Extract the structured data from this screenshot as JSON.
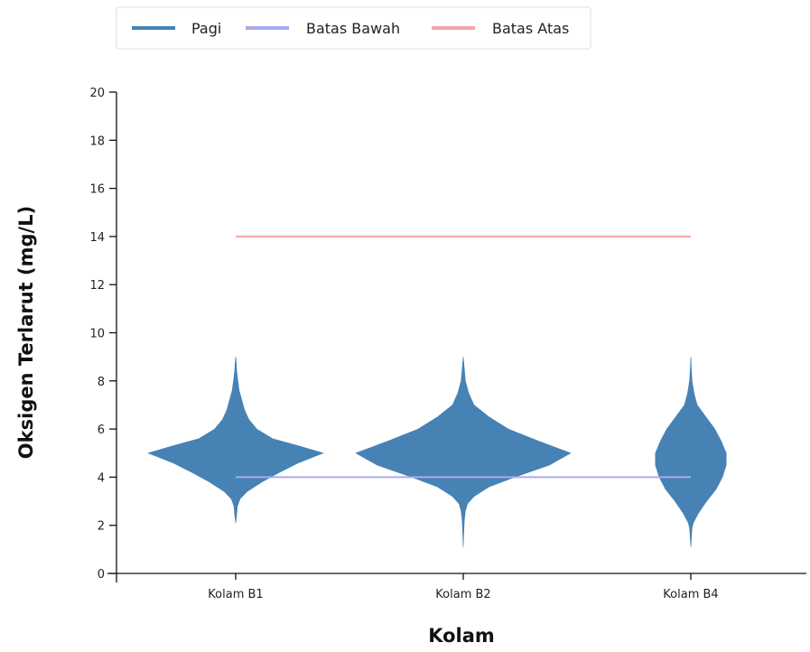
{
  "chart_data": {
    "type": "violin",
    "title": "",
    "xlabel": "Kolam",
    "ylabel": "Oksigen Terlarut (mg/L)",
    "categories": [
      "Kolam B1",
      "Kolam B2",
      "Kolam B4"
    ],
    "ylim": [
      0,
      20
    ],
    "yticks": [
      0,
      2,
      4,
      6,
      8,
      10,
      12,
      14,
      16,
      18,
      20
    ],
    "grid": false,
    "legend_position": "top-center",
    "series": [
      {
        "name": "Pagi",
        "color": "#4682b4",
        "violins": [
          {
            "category": "Kolam B1",
            "profile": [
              [
                2.1,
                0.0
              ],
              [
                2.4,
                0.01
              ],
              [
                2.8,
                0.02
              ],
              [
                3.1,
                0.05
              ],
              [
                3.4,
                0.13
              ],
              [
                3.8,
                0.3
              ],
              [
                4.2,
                0.5
              ],
              [
                4.6,
                0.72
              ],
              [
                5.0,
                1.0
              ],
              [
                5.3,
                0.72
              ],
              [
                5.6,
                0.42
              ],
              [
                6.0,
                0.24
              ],
              [
                6.4,
                0.15
              ],
              [
                6.8,
                0.1
              ],
              [
                7.2,
                0.07
              ],
              [
                7.6,
                0.04
              ],
              [
                8.0,
                0.025
              ],
              [
                8.4,
                0.012
              ],
              [
                8.8,
                0.005
              ],
              [
                9.0,
                0.0
              ]
            ]
          },
          {
            "category": "Kolam B2",
            "profile": [
              [
                1.1,
                0.0
              ],
              [
                1.6,
                0.004
              ],
              [
                2.2,
                0.01
              ],
              [
                2.6,
                0.02
              ],
              [
                2.9,
                0.04
              ],
              [
                3.2,
                0.1
              ],
              [
                3.6,
                0.24
              ],
              [
                4.0,
                0.48
              ],
              [
                4.5,
                0.8
              ],
              [
                5.0,
                1.0
              ],
              [
                5.5,
                0.7
              ],
              [
                6.0,
                0.42
              ],
              [
                6.5,
                0.24
              ],
              [
                7.0,
                0.1
              ],
              [
                7.5,
                0.05
              ],
              [
                8.0,
                0.02
              ],
              [
                8.5,
                0.01
              ],
              [
                9.0,
                0.0
              ]
            ]
          },
          {
            "category": "Kolam B4",
            "profile": [
              [
                1.1,
                0.0
              ],
              [
                1.5,
                0.01
              ],
              [
                1.9,
                0.02
              ],
              [
                2.1,
                0.04
              ],
              [
                2.5,
                0.12
              ],
              [
                3.0,
                0.25
              ],
              [
                3.5,
                0.4
              ],
              [
                4.0,
                0.5
              ],
              [
                4.5,
                0.56
              ],
              [
                5.0,
                0.56
              ],
              [
                5.5,
                0.48
              ],
              [
                6.0,
                0.38
              ],
              [
                6.5,
                0.24
              ],
              [
                7.0,
                0.1
              ],
              [
                7.5,
                0.05
              ],
              [
                8.0,
                0.02
              ],
              [
                8.5,
                0.008
              ],
              [
                9.0,
                0.0
              ]
            ]
          }
        ]
      },
      {
        "name": "Batas Bawah",
        "color": "#aaaaee",
        "values": [
          4,
          4,
          4
        ]
      },
      {
        "name": "Batas Atas",
        "color": "#f4a6a6",
        "values": [
          14,
          14,
          14
        ]
      }
    ]
  }
}
